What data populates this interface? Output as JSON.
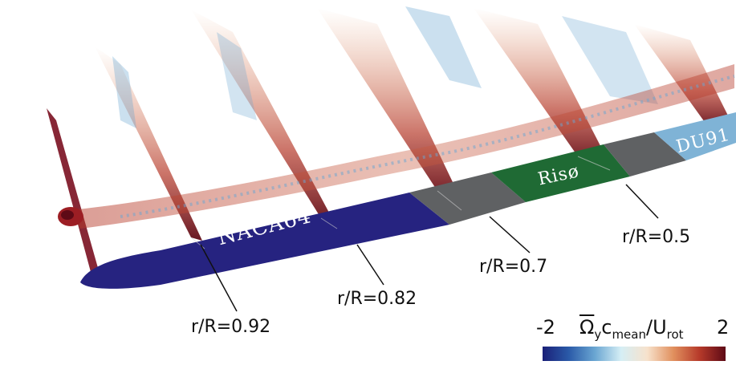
{
  "segments": [
    {
      "label": "NACA64",
      "color": "#262380"
    },
    {
      "label": "Risø",
      "color": "#1f6a34"
    },
    {
      "label": "DU91",
      "color": "#7fb3d6"
    }
  ],
  "transition_color": "#5f6163",
  "sections": [
    {
      "label": "r/R=0.92"
    },
    {
      "label": "r/R=0.82"
    },
    {
      "label": "r/R=0.7"
    },
    {
      "label": "r/R=0.5"
    }
  ],
  "colorbar": {
    "min": "-2",
    "max": "2",
    "title_symbol": "Ω",
    "title_sub_y": "y",
    "title_c": "c",
    "title_sub_mean": "mean",
    "title_slash": "/U",
    "title_sub_rot": "rot",
    "colors": [
      "#1a2078",
      "#2a5aa8",
      "#6aa6d2",
      "#d5eef5",
      "#f7e2cc",
      "#e1905e",
      "#b63a2a",
      "#5e0a16"
    ]
  }
}
